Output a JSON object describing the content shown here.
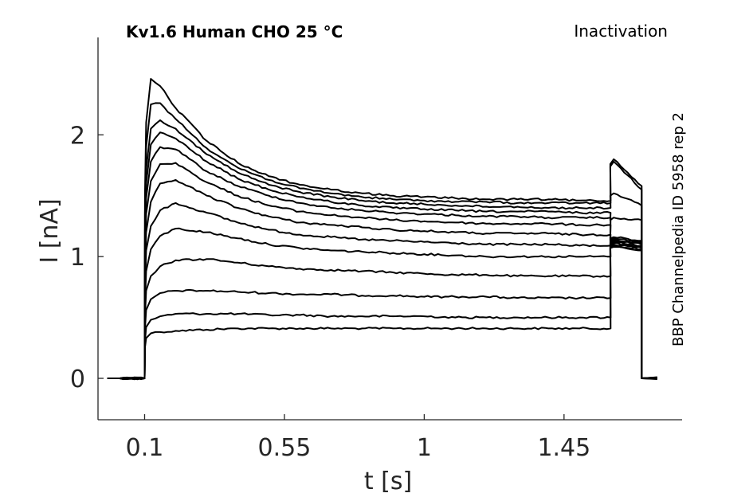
{
  "chart_data": {
    "type": "line",
    "title": "Kv1.6  Human  CHO  25 °C",
    "protocol_label": "Inactivation",
    "side_label": "BBP Channelpedia ID 5958 rep 2",
    "xlabel": "t [s]",
    "ylabel": "I [nA]",
    "xlim": [
      -0.05,
      1.83
    ],
    "ylim": [
      -0.34,
      2.8
    ],
    "x_ticks": [
      0.1,
      0.55,
      1,
      1.45
    ],
    "x_tick_labels": [
      "0.1",
      "0.55",
      "1",
      "1.45"
    ],
    "y_ticks": [
      0,
      1,
      2
    ],
    "y_tick_labels": [
      "0",
      "1",
      "2"
    ],
    "grid": false,
    "legend": "none",
    "time_points": [
      0.02,
      0.1,
      0.101,
      0.105,
      0.12,
      0.15,
      0.2,
      0.3,
      0.4,
      0.5,
      0.6,
      0.7,
      0.8,
      0.9,
      1.0,
      1.1,
      1.2,
      1.3,
      1.4,
      1.5,
      1.6,
      1.599,
      1.61,
      1.7,
      1.7
    ],
    "series": [
      {
        "values": [
          0,
          0,
          0.25,
          0.33,
          0.37,
          0.38,
          0.39,
          0.4,
          0.41,
          0.41,
          0.41,
          0.41,
          0.41,
          0.41,
          0.41,
          0.41,
          0.41,
          0.41,
          0.41,
          0.41,
          0.41,
          1.07,
          1.08,
          1.05,
          0
        ]
      },
      {
        "values": [
          0,
          0,
          0.3,
          0.42,
          0.48,
          0.51,
          0.53,
          0.53,
          0.53,
          0.52,
          0.52,
          0.51,
          0.51,
          0.51,
          0.51,
          0.5,
          0.5,
          0.5,
          0.5,
          0.5,
          0.5,
          1.08,
          1.09,
          1.06,
          0
        ]
      },
      {
        "values": [
          0,
          0,
          0.4,
          0.56,
          0.65,
          0.7,
          0.72,
          0.72,
          0.71,
          0.7,
          0.69,
          0.69,
          0.68,
          0.68,
          0.67,
          0.67,
          0.67,
          0.66,
          0.66,
          0.66,
          0.66,
          1.09,
          1.1,
          1.07,
          0
        ]
      },
      {
        "values": [
          0,
          0,
          0.5,
          0.72,
          0.84,
          0.92,
          0.97,
          0.98,
          0.95,
          0.92,
          0.9,
          0.89,
          0.88,
          0.87,
          0.86,
          0.85,
          0.85,
          0.84,
          0.84,
          0.84,
          0.84,
          1.1,
          1.11,
          1.08,
          0
        ]
      },
      {
        "values": [
          0,
          0,
          0.6,
          0.88,
          1.06,
          1.17,
          1.23,
          1.2,
          1.15,
          1.1,
          1.07,
          1.05,
          1.04,
          1.03,
          1.02,
          1.01,
          1.0,
          1.0,
          1.0,
          1.0,
          1.0,
          1.11,
          1.12,
          1.09,
          0
        ]
      },
      {
        "values": [
          0,
          0,
          0.7,
          1.05,
          1.25,
          1.38,
          1.44,
          1.36,
          1.28,
          1.22,
          1.18,
          1.16,
          1.14,
          1.13,
          1.12,
          1.11,
          1.1,
          1.1,
          1.1,
          1.09,
          1.09,
          1.12,
          1.13,
          1.1,
          0
        ]
      },
      {
        "values": [
          0,
          0,
          0.8,
          1.2,
          1.45,
          1.6,
          1.63,
          1.5,
          1.4,
          1.33,
          1.28,
          1.26,
          1.24,
          1.22,
          1.21,
          1.2,
          1.19,
          1.19,
          1.19,
          1.18,
          1.18,
          1.13,
          1.14,
          1.11,
          0
        ]
      },
      {
        "values": [
          0,
          0,
          0.9,
          1.35,
          1.62,
          1.76,
          1.77,
          1.61,
          1.5,
          1.42,
          1.37,
          1.34,
          1.32,
          1.3,
          1.29,
          1.28,
          1.27,
          1.27,
          1.27,
          1.26,
          1.26,
          1.14,
          1.15,
          1.12,
          0
        ]
      },
      {
        "values": [
          0,
          0,
          1.0,
          1.48,
          1.78,
          1.9,
          1.88,
          1.7,
          1.58,
          1.5,
          1.44,
          1.4,
          1.38,
          1.36,
          1.35,
          1.34,
          1.33,
          1.33,
          1.32,
          1.32,
          1.32,
          1.15,
          1.16,
          1.13,
          0
        ]
      },
      {
        "values": [
          0,
          0,
          1.1,
          1.6,
          1.92,
          2.02,
          1.97,
          1.78,
          1.64,
          1.55,
          1.49,
          1.45,
          1.42,
          1.4,
          1.39,
          1.38,
          1.37,
          1.37,
          1.37,
          1.36,
          1.36,
          1.3,
          1.32,
          1.3,
          0
        ]
      },
      {
        "values": [
          0,
          0,
          1.2,
          1.72,
          2.05,
          2.12,
          2.05,
          1.84,
          1.69,
          1.59,
          1.53,
          1.49,
          1.46,
          1.44,
          1.43,
          1.42,
          1.41,
          1.41,
          1.4,
          1.4,
          1.4,
          1.5,
          1.52,
          1.42,
          0
        ]
      },
      {
        "values": [
          0,
          0,
          1.35,
          1.9,
          2.25,
          2.26,
          2.13,
          1.89,
          1.73,
          1.63,
          1.56,
          1.52,
          1.49,
          1.47,
          1.46,
          1.45,
          1.45,
          1.44,
          1.44,
          1.44,
          1.44,
          1.74,
          1.78,
          1.55,
          0
        ]
      },
      {
        "values": [
          0,
          0,
          1.5,
          2.1,
          2.46,
          2.4,
          2.22,
          1.95,
          1.77,
          1.66,
          1.59,
          1.55,
          1.52,
          1.5,
          1.49,
          1.48,
          1.47,
          1.47,
          1.47,
          1.46,
          1.46,
          1.76,
          1.8,
          1.58,
          0
        ]
      }
    ]
  }
}
